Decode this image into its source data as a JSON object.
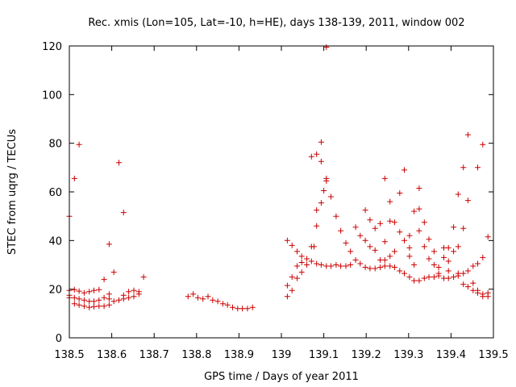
{
  "chart_data": {
    "type": "scatter",
    "title": "Rec. xmis (Lon=105, Lat=-10, h=HE), days 138-139, 2011, window 002",
    "xlabel": "GPS time / Days of year 2011",
    "ylabel": "STEC from uqrg / TECUs",
    "xlim": [
      138.5,
      139.5
    ],
    "ylim": [
      0,
      120
    ],
    "xticks": [
      "138.5",
      "138.6",
      "138.7",
      "138.8",
      "138.9",
      "139",
      "139.1",
      "139.2",
      "139.3",
      "139.4",
      "139.5"
    ],
    "yticks": [
      "0",
      "20",
      "40",
      "60",
      "80",
      "100",
      "120"
    ],
    "grid": false,
    "legend": "none",
    "marker": "+",
    "color": "#cc0000",
    "series": [
      {
        "name": "STEC",
        "points": [
          [
            138.5,
            50.0
          ],
          [
            138.512,
            65.5
          ],
          [
            138.523,
            79.5
          ],
          [
            138.5,
            19.5
          ],
          [
            138.512,
            19.8
          ],
          [
            138.523,
            19.2
          ],
          [
            138.535,
            18.5
          ],
          [
            138.547,
            19.0
          ],
          [
            138.558,
            19.5
          ],
          [
            138.57,
            19.8
          ],
          [
            138.5,
            17.5
          ],
          [
            138.512,
            16.5
          ],
          [
            138.523,
            16.0
          ],
          [
            138.535,
            15.5
          ],
          [
            138.547,
            15.0
          ],
          [
            138.558,
            15.0
          ],
          [
            138.57,
            15.5
          ],
          [
            138.5,
            16.5
          ],
          [
            138.512,
            14.0
          ],
          [
            138.523,
            13.5
          ],
          [
            138.535,
            13.0
          ],
          [
            138.547,
            12.5
          ],
          [
            138.558,
            12.8
          ],
          [
            138.57,
            13.0
          ],
          [
            138.582,
            13.0
          ],
          [
            138.594,
            13.5
          ],
          [
            138.582,
            16.5
          ],
          [
            138.594,
            16.0
          ],
          [
            138.605,
            15.0
          ],
          [
            138.617,
            15.5
          ],
          [
            138.628,
            16.0
          ],
          [
            138.64,
            16.5
          ],
          [
            138.582,
            24.0
          ],
          [
            138.594,
            38.5
          ],
          [
            138.605,
            27.0
          ],
          [
            138.617,
            72.0
          ],
          [
            138.628,
            51.5
          ],
          [
            138.594,
            18.0
          ],
          [
            138.628,
            17.5
          ],
          [
            138.64,
            19.0
          ],
          [
            138.652,
            19.5
          ],
          [
            138.664,
            19.0
          ],
          [
            138.675,
            25.0
          ],
          [
            138.652,
            17.0
          ],
          [
            138.664,
            18.0
          ],
          [
            138.78,
            17.0
          ],
          [
            138.792,
            18.0
          ],
          [
            138.803,
            16.5
          ],
          [
            138.815,
            16.0
          ],
          [
            138.827,
            17.0
          ],
          [
            138.838,
            15.5
          ],
          [
            138.85,
            15.0
          ],
          [
            138.862,
            14.0
          ],
          [
            138.873,
            13.5
          ],
          [
            138.885,
            12.5
          ],
          [
            138.897,
            12.0
          ],
          [
            138.908,
            12.0
          ],
          [
            138.92,
            12.0
          ],
          [
            138.932,
            12.5
          ],
          [
            139.014,
            17.0
          ],
          [
            139.014,
            21.5
          ],
          [
            139.025,
            19.5
          ],
          [
            139.037,
            24.5
          ],
          [
            139.048,
            27.0
          ],
          [
            139.06,
            30.0
          ],
          [
            139.071,
            31.5
          ],
          [
            139.014,
            40.0
          ],
          [
            139.025,
            38.0
          ],
          [
            139.037,
            35.5
          ],
          [
            139.048,
            33.5
          ],
          [
            139.06,
            32.5
          ],
          [
            139.025,
            25.0
          ],
          [
            139.037,
            29.5
          ],
          [
            139.048,
            31.0
          ],
          [
            139.071,
            74.5
          ],
          [
            139.083,
            75.5
          ],
          [
            139.094,
            80.5
          ],
          [
            139.094,
            72.5
          ],
          [
            139.106,
            65.5
          ],
          [
            139.106,
            64.5
          ],
          [
            139.117,
            58.0
          ],
          [
            139.129,
            50.0
          ],
          [
            139.106,
            119.5
          ],
          [
            139.071,
            37.5
          ],
          [
            139.077,
            37.5
          ],
          [
            139.083,
            46.0
          ],
          [
            139.083,
            52.5
          ],
          [
            139.094,
            55.5
          ],
          [
            139.1,
            60.5
          ],
          [
            139.083,
            30.5
          ],
          [
            139.094,
            30.0
          ],
          [
            139.106,
            29.5
          ],
          [
            139.117,
            29.5
          ],
          [
            139.129,
            30.0
          ],
          [
            139.14,
            29.5
          ],
          [
            139.152,
            29.5
          ],
          [
            139.163,
            30.0
          ],
          [
            139.14,
            44.0
          ],
          [
            139.152,
            39.0
          ],
          [
            139.163,
            35.5
          ],
          [
            139.175,
            32.0
          ],
          [
            139.175,
            45.5
          ],
          [
            139.186,
            42.0
          ],
          [
            139.198,
            52.5
          ],
          [
            139.198,
            40.0
          ],
          [
            139.209,
            48.5
          ],
          [
            139.209,
            37.5
          ],
          [
            139.186,
            30.5
          ],
          [
            139.198,
            29.0
          ],
          [
            139.209,
            28.5
          ],
          [
            139.221,
            28.5
          ],
          [
            139.233,
            29.0
          ],
          [
            139.244,
            29.5
          ],
          [
            139.256,
            29.5
          ],
          [
            139.221,
            45.0
          ],
          [
            139.221,
            36.0
          ],
          [
            139.233,
            47.0
          ],
          [
            139.233,
            32.0
          ],
          [
            139.244,
            65.5
          ],
          [
            139.244,
            39.5
          ],
          [
            139.256,
            56.0
          ],
          [
            139.256,
            48.0
          ],
          [
            139.267,
            47.5
          ],
          [
            139.256,
            33.5
          ],
          [
            139.267,
            35.5
          ],
          [
            139.244,
            32.0
          ],
          [
            139.267,
            29.0
          ],
          [
            139.279,
            27.5
          ],
          [
            139.29,
            26.5
          ],
          [
            139.302,
            25.0
          ],
          [
            139.313,
            23.5
          ],
          [
            139.325,
            23.5
          ],
          [
            139.337,
            24.5
          ],
          [
            139.279,
            59.5
          ],
          [
            139.29,
            69.0
          ],
          [
            139.279,
            43.5
          ],
          [
            139.29,
            40.0
          ],
          [
            139.302,
            37.0
          ],
          [
            139.302,
            42.0
          ],
          [
            139.313,
            52.0
          ],
          [
            139.325,
            61.5
          ],
          [
            139.325,
            53.0
          ],
          [
            139.325,
            44.0
          ],
          [
            139.313,
            30.0
          ],
          [
            139.302,
            33.5
          ],
          [
            139.337,
            47.5
          ],
          [
            139.337,
            37.5
          ],
          [
            139.348,
            40.5
          ],
          [
            139.348,
            32.5
          ],
          [
            139.36,
            35.5
          ],
          [
            139.348,
            25.0
          ],
          [
            139.36,
            25.0
          ],
          [
            139.371,
            25.5
          ],
          [
            139.383,
            24.5
          ],
          [
            139.394,
            24.5
          ],
          [
            139.406,
            25.0
          ],
          [
            139.417,
            25.5
          ],
          [
            139.36,
            30.0
          ],
          [
            139.371,
            29.0
          ],
          [
            139.383,
            33.0
          ],
          [
            139.394,
            31.5
          ],
          [
            139.383,
            37.0
          ],
          [
            139.394,
            37.0
          ],
          [
            139.406,
            35.5
          ],
          [
            139.371,
            26.5
          ],
          [
            139.394,
            27.5
          ],
          [
            139.417,
            26.5
          ],
          [
            139.429,
            26.5
          ],
          [
            139.406,
            45.5
          ],
          [
            139.417,
            59.0
          ],
          [
            139.429,
            70.0
          ],
          [
            139.44,
            56.5
          ],
          [
            139.44,
            83.5
          ],
          [
            139.463,
            70.0
          ],
          [
            139.475,
            79.5
          ],
          [
            139.429,
            45.0
          ],
          [
            139.417,
            37.5
          ],
          [
            139.429,
            22.0
          ],
          [
            139.44,
            21.0
          ],
          [
            139.452,
            19.5
          ],
          [
            139.463,
            18.5
          ],
          [
            139.475,
            17.0
          ],
          [
            139.487,
            17.0
          ],
          [
            139.44,
            27.5
          ],
          [
            139.452,
            29.5
          ],
          [
            139.463,
            30.5
          ],
          [
            139.475,
            33.0
          ],
          [
            139.452,
            22.5
          ],
          [
            139.463,
            19.5
          ],
          [
            139.475,
            18.0
          ],
          [
            139.487,
            18.5
          ],
          [
            139.487,
            41.5
          ]
        ]
      }
    ]
  }
}
